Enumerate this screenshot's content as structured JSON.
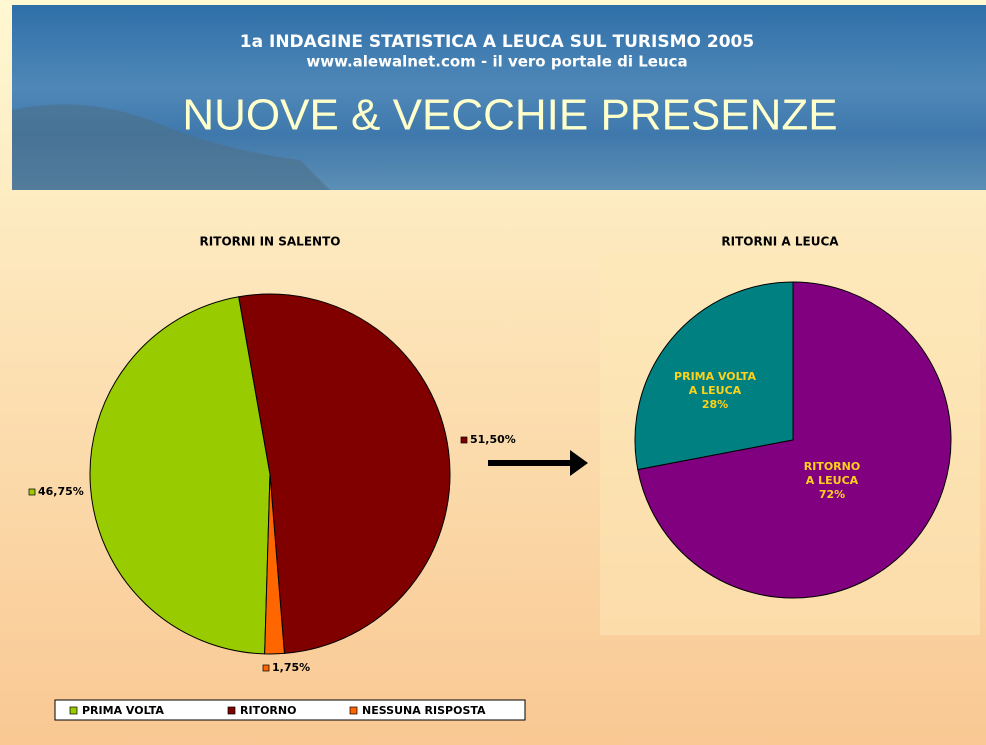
{
  "header": {
    "survey": "1a INDAGINE STATISTICA A LEUCA SUL TURISMO 2005",
    "site": "www.alewalnet.com - il vero portale di Leuca",
    "title": "NUOVE & VECCHIE PRESENZE"
  },
  "chart_data": [
    {
      "type": "pie",
      "title": "RITORNI IN SALENTO",
      "categories": [
        "PRIMA VOLTA",
        "RITORNO",
        "NESSUNA RISPOSTA"
      ],
      "values": [
        46.75,
        51.5,
        1.75
      ],
      "value_labels": [
        "46,75%",
        "51,50%",
        "1,75%"
      ],
      "colors": [
        "#99cc00",
        "#800000",
        "#ff6600"
      ],
      "legend": "bottom"
    },
    {
      "type": "pie",
      "title": "RITORNI A LEUCA",
      "categories": [
        "PRIMA VOLTA\nA LEUCA",
        "RITORNO\nA LEUCA"
      ],
      "values": [
        28,
        72
      ],
      "value_labels": [
        "28%",
        "72%"
      ],
      "colors": [
        "#008080",
        "#800080"
      ]
    }
  ]
}
